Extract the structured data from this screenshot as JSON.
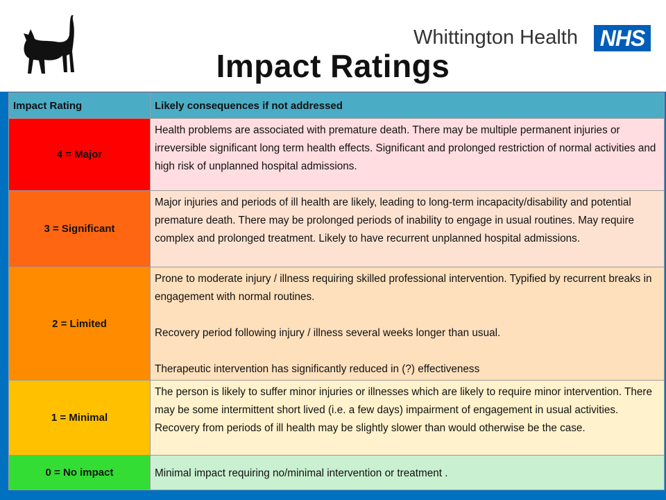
{
  "header": {
    "title": "Impact Ratings",
    "brand_name": "Whittington Health",
    "nhs_logo_text": "NHS"
  },
  "table": {
    "columns": [
      "Impact Rating",
      "Likely consequences if not addressed"
    ],
    "rows": [
      {
        "rating": "4 = Major",
        "rating_color": "#ff0000",
        "desc_color": "#ffdde0",
        "paragraphs": [
          "Health problems are associated with premature death. There may be multiple permanent injuries or irreversible significant long term health effects. Significant and prolonged restriction of normal activities and high risk of unplanned hospital admissions."
        ]
      },
      {
        "rating": "3 = Significant",
        "rating_color": "#ff6611",
        "desc_color": "#fde2d1",
        "paragraphs": [
          "Major injuries and periods of ill health are likely, leading to long-term incapacity/disability and potential premature death. There may be prolonged periods of inability to engage in usual routines. May require complex and prolonged treatment. Likely to have recurrent unplanned hospital admissions."
        ]
      },
      {
        "rating": "2 = Limited",
        "rating_color": "#ff8c00",
        "desc_color": "#fee0bd",
        "paragraphs": [
          "Prone to moderate injury / illness requiring skilled professional intervention. Typified by recurrent breaks in engagement with normal routines.",
          "Recovery period following injury / illness several weeks longer than usual.",
          "Therapeutic intervention has significantly reduced in (?) effectiveness"
        ]
      },
      {
        "rating": "1 = Minimal",
        "rating_color": "#ffc000",
        "desc_color": "#fff2cc",
        "paragraphs": [
          "The person is likely to suffer minor injuries or illnesses which are likely to require minor intervention. There may be some intermittent short lived (i.e. a few days) impairment of engagement in usual activities. Recovery from periods of ill health may be slightly slower than would otherwise be the case."
        ]
      },
      {
        "rating": "0 = No impact",
        "rating_color": "#33dd33",
        "desc_color": "#c9f0d0",
        "paragraphs": [
          "Minimal impact requiring no/minimal intervention or treatment ."
        ]
      }
    ]
  }
}
